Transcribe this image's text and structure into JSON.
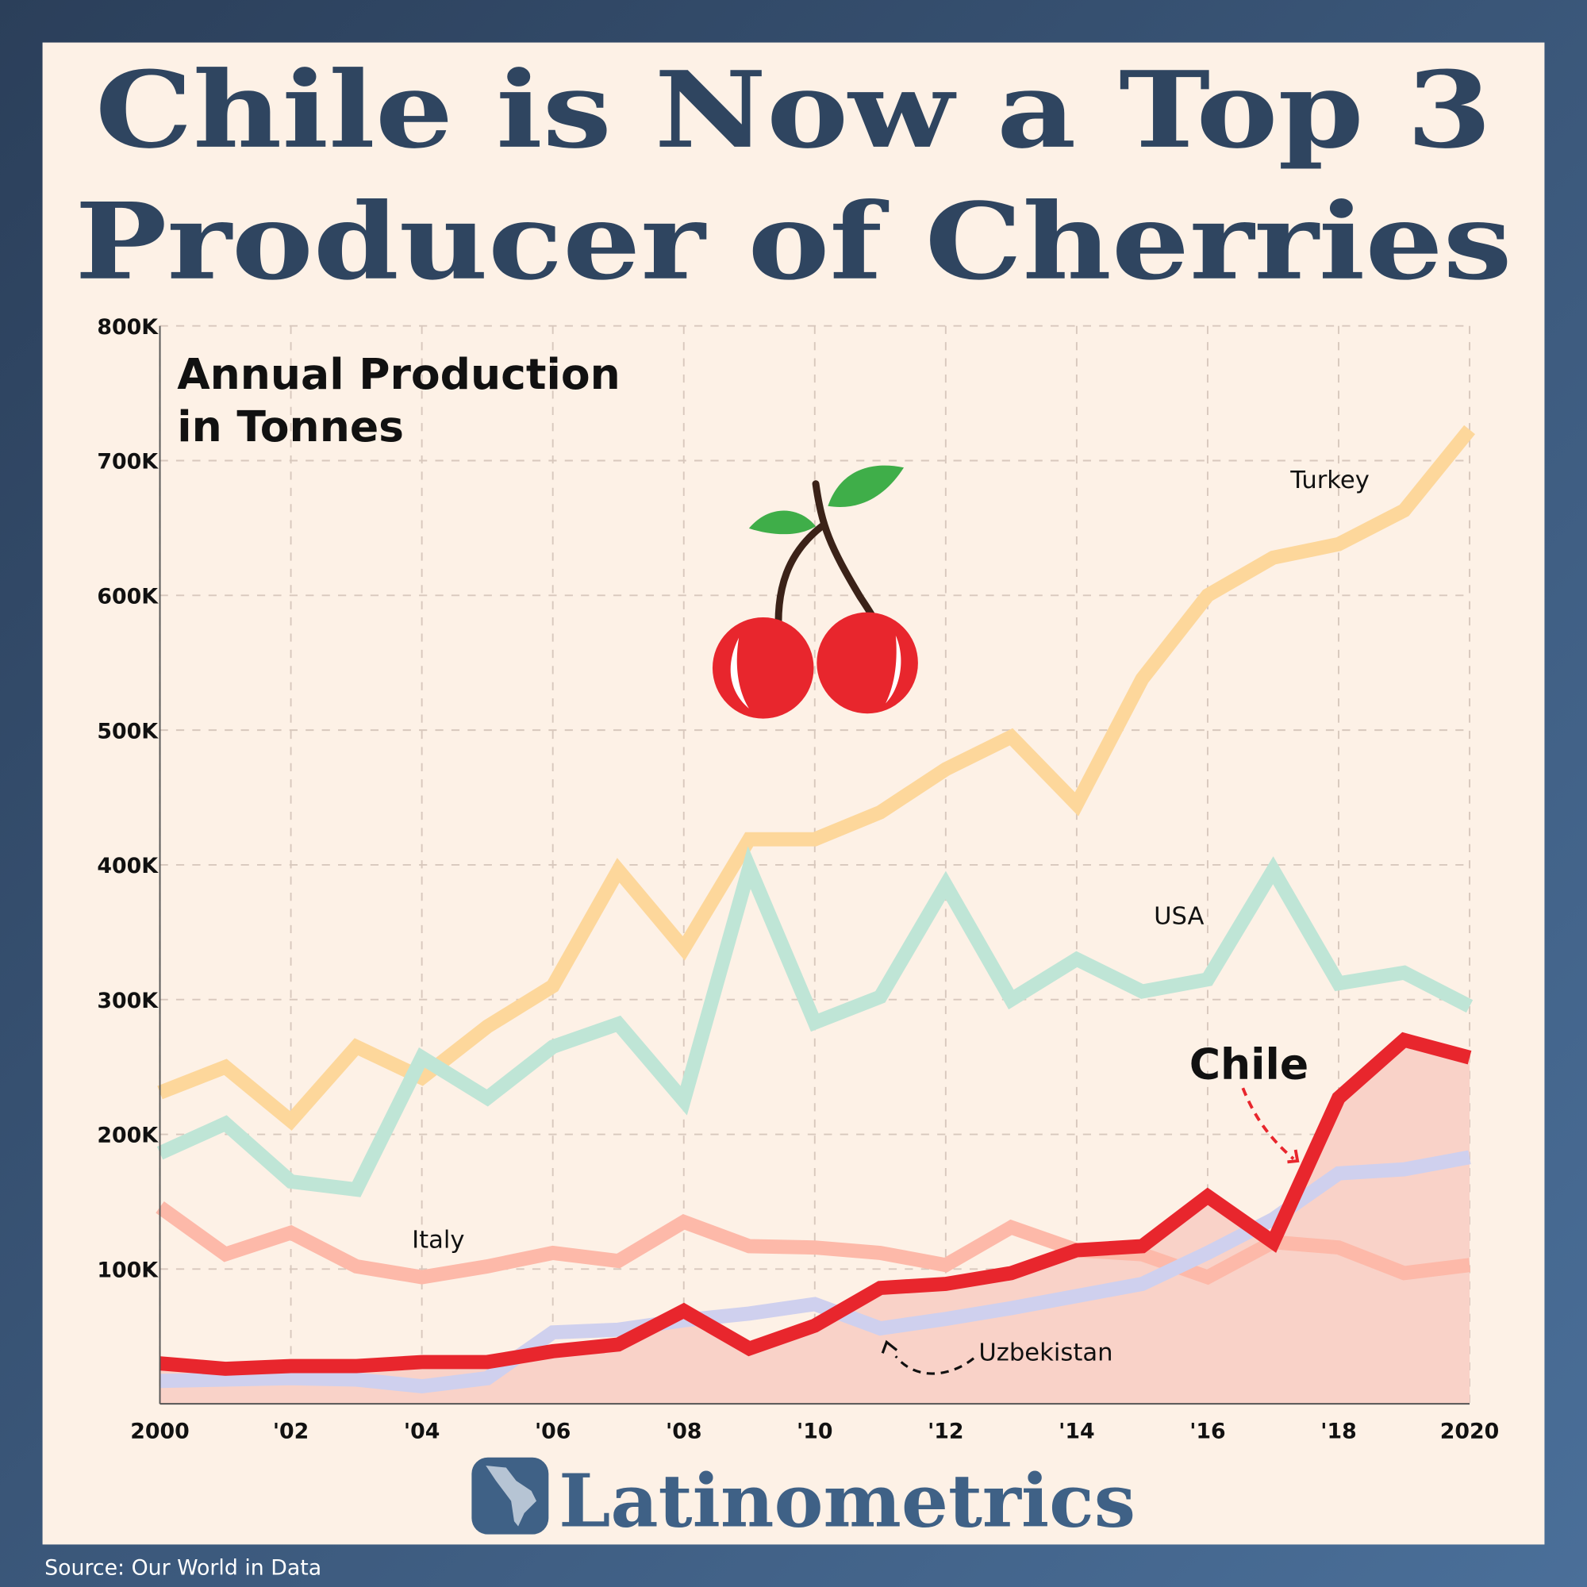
{
  "title_line1": "Chile is Now a Top 3",
  "title_line2": "Producer of Cherries",
  "subtitle_line1": "Annual Production",
  "subtitle_line2": "in Tonnes",
  "brand": "Latinometrics",
  "source": "Source: Our World in Data",
  "colors": {
    "background": "#fdf1e6",
    "frame": "#34506f",
    "title": "#2f4560",
    "brand": "#3f6186"
  },
  "chart_data": {
    "type": "line",
    "title": "Annual Production in Tonnes",
    "x": [
      2000,
      2001,
      2002,
      2003,
      2004,
      2005,
      2006,
      2007,
      2008,
      2009,
      2010,
      2011,
      2012,
      2013,
      2014,
      2015,
      2016,
      2017,
      2018,
      2019,
      2020
    ],
    "x_tick_labels": [
      "2000",
      "'02",
      "'04",
      "'06",
      "'08",
      "'10",
      "'12",
      "'14",
      "'16",
      "'18",
      "2020"
    ],
    "y_tick_labels": [
      "100K",
      "200K",
      "300K",
      "400K",
      "500K",
      "600K",
      "700K",
      "800K"
    ],
    "ylim": [
      0,
      800000
    ],
    "grid": true,
    "series": [
      {
        "name": "Turkey",
        "color": "#fdd79b",
        "values": [
          231000,
          250000,
          210000,
          265000,
          242000,
          280000,
          310000,
          396000,
          338000,
          419000,
          419000,
          439000,
          471000,
          495000,
          445000,
          538000,
          600000,
          628000,
          638000,
          663000,
          723000
        ]
      },
      {
        "name": "USA",
        "color": "#bfe5d6",
        "values": [
          186000,
          208000,
          165000,
          159000,
          257000,
          227000,
          265000,
          282000,
          225000,
          398000,
          283000,
          302000,
          385000,
          300000,
          330000,
          306000,
          315000,
          396000,
          312000,
          320000,
          295000
        ]
      },
      {
        "name": "Italy",
        "color": "#fdb9a9",
        "values": [
          146000,
          111000,
          127000,
          102000,
          94000,
          102000,
          112000,
          106000,
          135000,
          117000,
          116000,
          112000,
          103000,
          131000,
          114000,
          111000,
          94000,
          120000,
          116000,
          97000,
          103000
        ]
      },
      {
        "name": "Uzbekistan",
        "color": "#cfd0ee",
        "values": [
          17000,
          18000,
          19000,
          18000,
          13000,
          19000,
          53000,
          55000,
          62000,
          67000,
          74000,
          56000,
          63000,
          71000,
          80000,
          89000,
          112000,
          137000,
          171000,
          174000,
          183000
        ]
      },
      {
        "name": "Chile",
        "color": "#e8262d",
        "fill": "#f9d2c8",
        "values": [
          30000,
          26000,
          28000,
          28000,
          31000,
          31000,
          39000,
          44000,
          69000,
          41000,
          58000,
          86000,
          89000,
          97000,
          114000,
          117000,
          154000,
          120000,
          227000,
          270000,
          257000
        ]
      }
    ]
  }
}
